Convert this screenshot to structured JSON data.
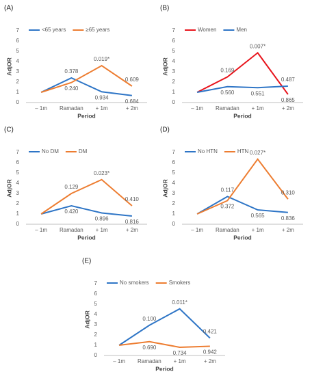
{
  "chart_data": [
    {
      "type": "line",
      "panel_label": "(A)",
      "y_label": "AdjOR",
      "x_label": "Period",
      "categories": [
        "– 1m",
        "Ramadan",
        "+ 1m",
        "+ 2m"
      ],
      "ylim": [
        0,
        7
      ],
      "yticks": [
        0,
        1,
        2,
        3,
        4,
        5,
        6,
        7
      ],
      "grid": false,
      "series": [
        {
          "name": "<65 years",
          "color": "#2e75c6",
          "values": [
            1,
            2.4,
            1.05,
            0.68
          ],
          "labels": [
            null,
            "0.378",
            "0.934",
            "0.684"
          ]
        },
        {
          "name": "≥65 years",
          "color": "#ed7d31",
          "values": [
            1,
            1.95,
            3.6,
            1.6
          ],
          "labels": [
            null,
            "0.240",
            "0.019*",
            "0.609"
          ]
        }
      ]
    },
    {
      "type": "line",
      "panel_label": "(B)",
      "y_label": "AdjOR",
      "x_label": "Period",
      "categories": [
        "– 1m",
        "Ramadan",
        "+ 1m",
        "+ 2m"
      ],
      "ylim": [
        0,
        7
      ],
      "yticks": [
        0,
        1,
        2,
        3,
        4,
        5,
        6,
        7
      ],
      "grid": false,
      "series": [
        {
          "name": "Women",
          "color": "#e8141c",
          "values": [
            1,
            2.5,
            4.85,
            0.8
          ],
          "labels": [
            null,
            "0.169",
            "0.007*",
            "0.865"
          ]
        },
        {
          "name": "Men",
          "color": "#2e75c6",
          "values": [
            1,
            1.55,
            1.45,
            1.6
          ],
          "labels": [
            null,
            "0.560",
            "0.551",
            "0.487"
          ]
        }
      ]
    },
    {
      "type": "line",
      "panel_label": "(C)",
      "y_label": "AdjOR",
      "x_label": "Period",
      "categories": [
        "– 1m",
        "Ramadan",
        "+ 1m",
        "+ 2m"
      ],
      "ylim": [
        0,
        7
      ],
      "yticks": [
        0,
        1,
        2,
        3,
        4,
        5,
        6,
        7
      ],
      "grid": false,
      "series": [
        {
          "name": "No DM",
          "color": "#2e75c6",
          "values": [
            1,
            1.8,
            1.1,
            0.8
          ],
          "labels": [
            null,
            "0.420",
            "0.896",
            "0.816"
          ]
        },
        {
          "name": "DM",
          "color": "#ed7d31",
          "values": [
            1,
            3.0,
            4.35,
            1.8
          ],
          "labels": [
            null,
            "0.129",
            "0.023*",
            "0.410"
          ]
        }
      ]
    },
    {
      "type": "line",
      "panel_label": "(D)",
      "y_label": "AdjOR",
      "x_label": "Period",
      "categories": [
        "– 1m",
        "Ramadan",
        "+ 1m",
        "+ 2m"
      ],
      "ylim": [
        0,
        7
      ],
      "yticks": [
        0,
        1,
        2,
        3,
        4,
        5,
        6,
        7
      ],
      "grid": false,
      "series": [
        {
          "name": "No HTN",
          "color": "#2e75c6",
          "values": [
            1,
            2.7,
            1.4,
            1.15
          ],
          "labels": [
            null,
            "0.117",
            "0.565",
            "0.836"
          ]
        },
        {
          "name": "HTN",
          "color": "#ed7d31",
          "values": [
            1,
            2.3,
            6.35,
            2.45
          ],
          "labels": [
            null,
            "0.372",
            "0.027*",
            "0.310"
          ]
        }
      ]
    },
    {
      "type": "line",
      "panel_label": "(E)",
      "y_label": "AdjOR",
      "x_label": "Period",
      "categories": [
        "– 1m",
        "Ramadan",
        "+ 1m",
        "+ 2m"
      ],
      "ylim": [
        0,
        7
      ],
      "yticks": [
        0,
        1,
        2,
        3,
        4,
        5,
        6,
        7
      ],
      "grid": false,
      "series": [
        {
          "name": "No smokers",
          "color": "#2e75c6",
          "values": [
            1,
            2.95,
            4.55,
            1.7
          ],
          "labels": [
            null,
            "0.100",
            "0.011*",
            "0.421"
          ]
        },
        {
          "name": "Smokers",
          "color": "#ed7d31",
          "values": [
            1,
            1.35,
            0.8,
            0.9
          ],
          "labels": [
            null,
            "0.690",
            "0.734",
            "0.942"
          ]
        }
      ]
    }
  ]
}
